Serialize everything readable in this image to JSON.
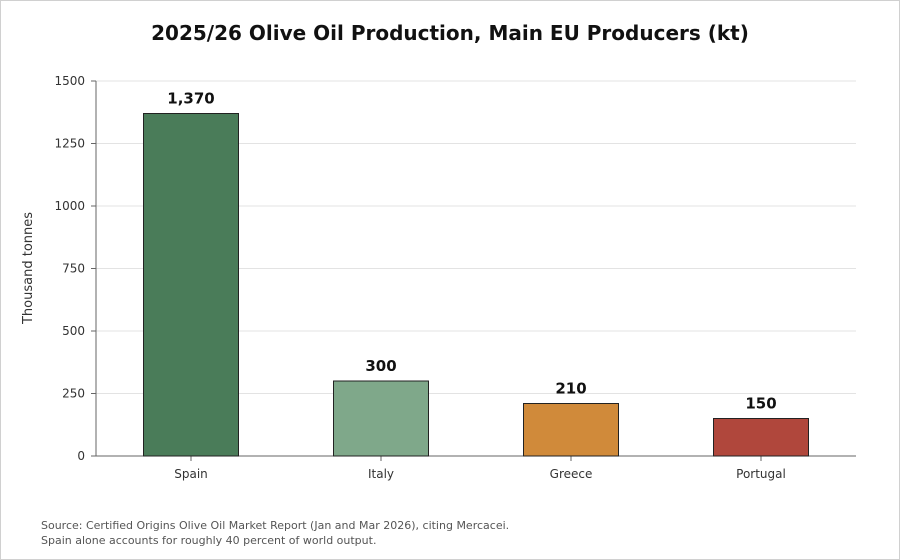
{
  "chart_data": {
    "type": "bar",
    "title": "2025/26 Olive Oil Production, Main EU Producers (kt)",
    "xlabel": "",
    "ylabel": "Thousand tonnes",
    "categories": [
      "Spain",
      "Italy",
      "Greece",
      "Portugal"
    ],
    "values": [
      1370,
      300,
      210,
      150
    ],
    "value_labels": [
      "1,370",
      "300",
      "210",
      "150"
    ],
    "colors": [
      "#4a7c59",
      "#7fa88a",
      "#d08a3a",
      "#b0473c"
    ],
    "ylim": [
      0,
      1500
    ],
    "yticks": [
      0,
      250,
      500,
      750,
      1000,
      1250,
      1500
    ],
    "grid": true,
    "legend": "none"
  },
  "footer": {
    "source_line1": "Source: Certified Origins Olive Oil Market Report (Jan and Mar 2026), citing Mercacei.",
    "source_line2": "Spain alone accounts for roughly 40 percent of world output."
  }
}
